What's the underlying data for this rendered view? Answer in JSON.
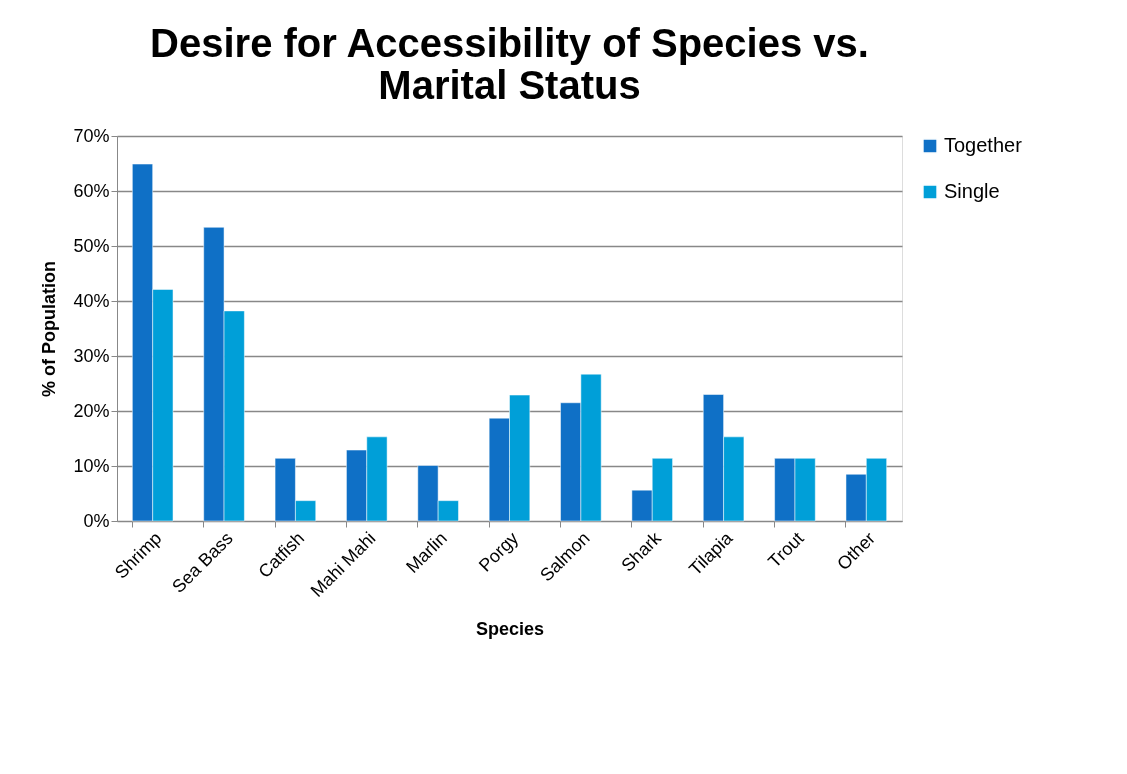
{
  "chart_data": {
    "type": "bar",
    "title": "Desire for Accessibility of Species vs. Marital Status",
    "xlabel": "Species",
    "ylabel": "% of Population",
    "categories": [
      "Shrimp",
      "Sea Bass",
      "Catfish",
      "Mahi Mahi",
      "Marlin",
      "Porgy",
      "Salmon",
      "Shark",
      "Tilapia",
      "Trout",
      "Other"
    ],
    "series": [
      {
        "name": "Together",
        "color": "#0f70c6",
        "values": [
          64.9,
          53.4,
          11.4,
          12.9,
          10.1,
          18.7,
          21.5,
          5.6,
          23.0,
          11.4,
          8.5
        ]
      },
      {
        "name": "Single",
        "color": "#009fd8",
        "values": [
          42.1,
          38.2,
          3.7,
          15.3,
          3.7,
          22.9,
          26.7,
          11.4,
          15.3,
          11.4,
          11.4
        ]
      }
    ],
    "ylim": [
      0,
      70
    ],
    "yticks": [
      {
        "value": 0,
        "label": "0%"
      },
      {
        "value": 10,
        "label": "10%"
      },
      {
        "value": 20,
        "label": "20%"
      },
      {
        "value": 30,
        "label": "30%"
      },
      {
        "value": 40,
        "label": "40%"
      },
      {
        "value": 50,
        "label": "50%"
      },
      {
        "value": 60,
        "label": "60%"
      },
      {
        "value": 70,
        "label": "70%"
      }
    ],
    "grid": "y",
    "legend": "right"
  }
}
